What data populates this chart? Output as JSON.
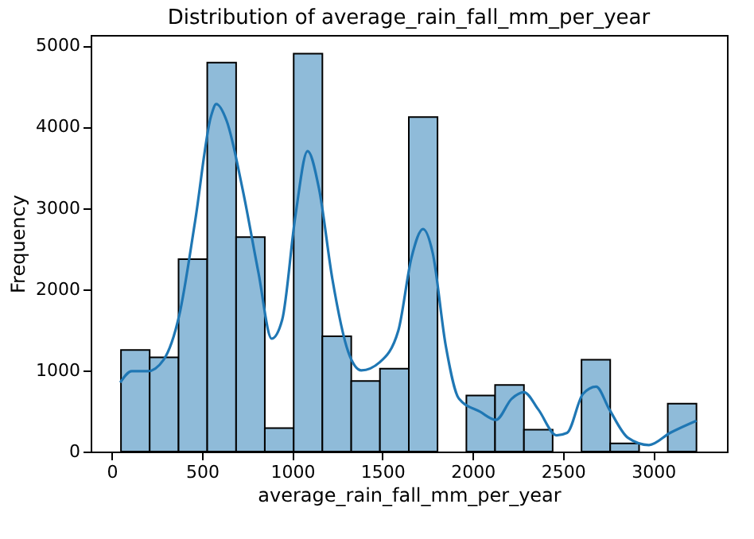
{
  "chart_data": {
    "type": "histogram",
    "title": "Distribution of average_rain_fall_mm_per_year",
    "xlabel": "average_rain_fall_mm_per_year",
    "ylabel": "Frequency",
    "bins": [
      51,
      210,
      370,
      529,
      689,
      848,
      1008,
      1167,
      1327,
      1486,
      1646,
      1805,
      1965,
      2124,
      2284,
      2443,
      2603,
      2762,
      2922,
      3081,
      3240
    ],
    "values": [
      1250,
      1160,
      2370,
      4790,
      2640,
      290,
      4900,
      1420,
      870,
      1020,
      4120,
      0,
      690,
      820,
      270,
      0,
      1130,
      100,
      0,
      590
    ],
    "color": "#8fbbd9",
    "series": [
      {
        "type": "line",
        "color": "#1f77b4",
        "x": [
          47,
          111,
          199,
          287,
          374,
          462,
          550,
          579,
          637,
          725,
          813,
          886,
          944,
          1018,
          1085,
          1149,
          1222,
          1310,
          1383,
          1485,
          1588,
          1661,
          1725,
          1778,
          1851,
          1924,
          2041,
          2129,
          2216,
          2284,
          2363,
          2465,
          2523,
          2611,
          2684,
          2757,
          2860,
          2977,
          3094,
          3240
        ],
        "values": [
          850,
          990,
          990,
          1130,
          1680,
          2840,
          4130,
          4280,
          4070,
          3230,
          2200,
          1390,
          1620,
          2910,
          3700,
          3230,
          2130,
          1230,
          1000,
          1100,
          1490,
          2390,
          2740,
          2450,
          1300,
          650,
          490,
          390,
          650,
          730,
          520,
          200,
          230,
          710,
          800,
          520,
          170,
          80,
          230,
          380
        ]
      }
    ],
    "xlim": [
      -117,
      3409
    ],
    "ylim": [
      0,
      5130
    ],
    "xticks": [
      0,
      500,
      1000,
      1500,
      2000,
      2500,
      3000
    ],
    "yticks": [
      0,
      1000,
      2000,
      3000,
      4000,
      5000
    ],
    "tick_labels": "xy"
  }
}
